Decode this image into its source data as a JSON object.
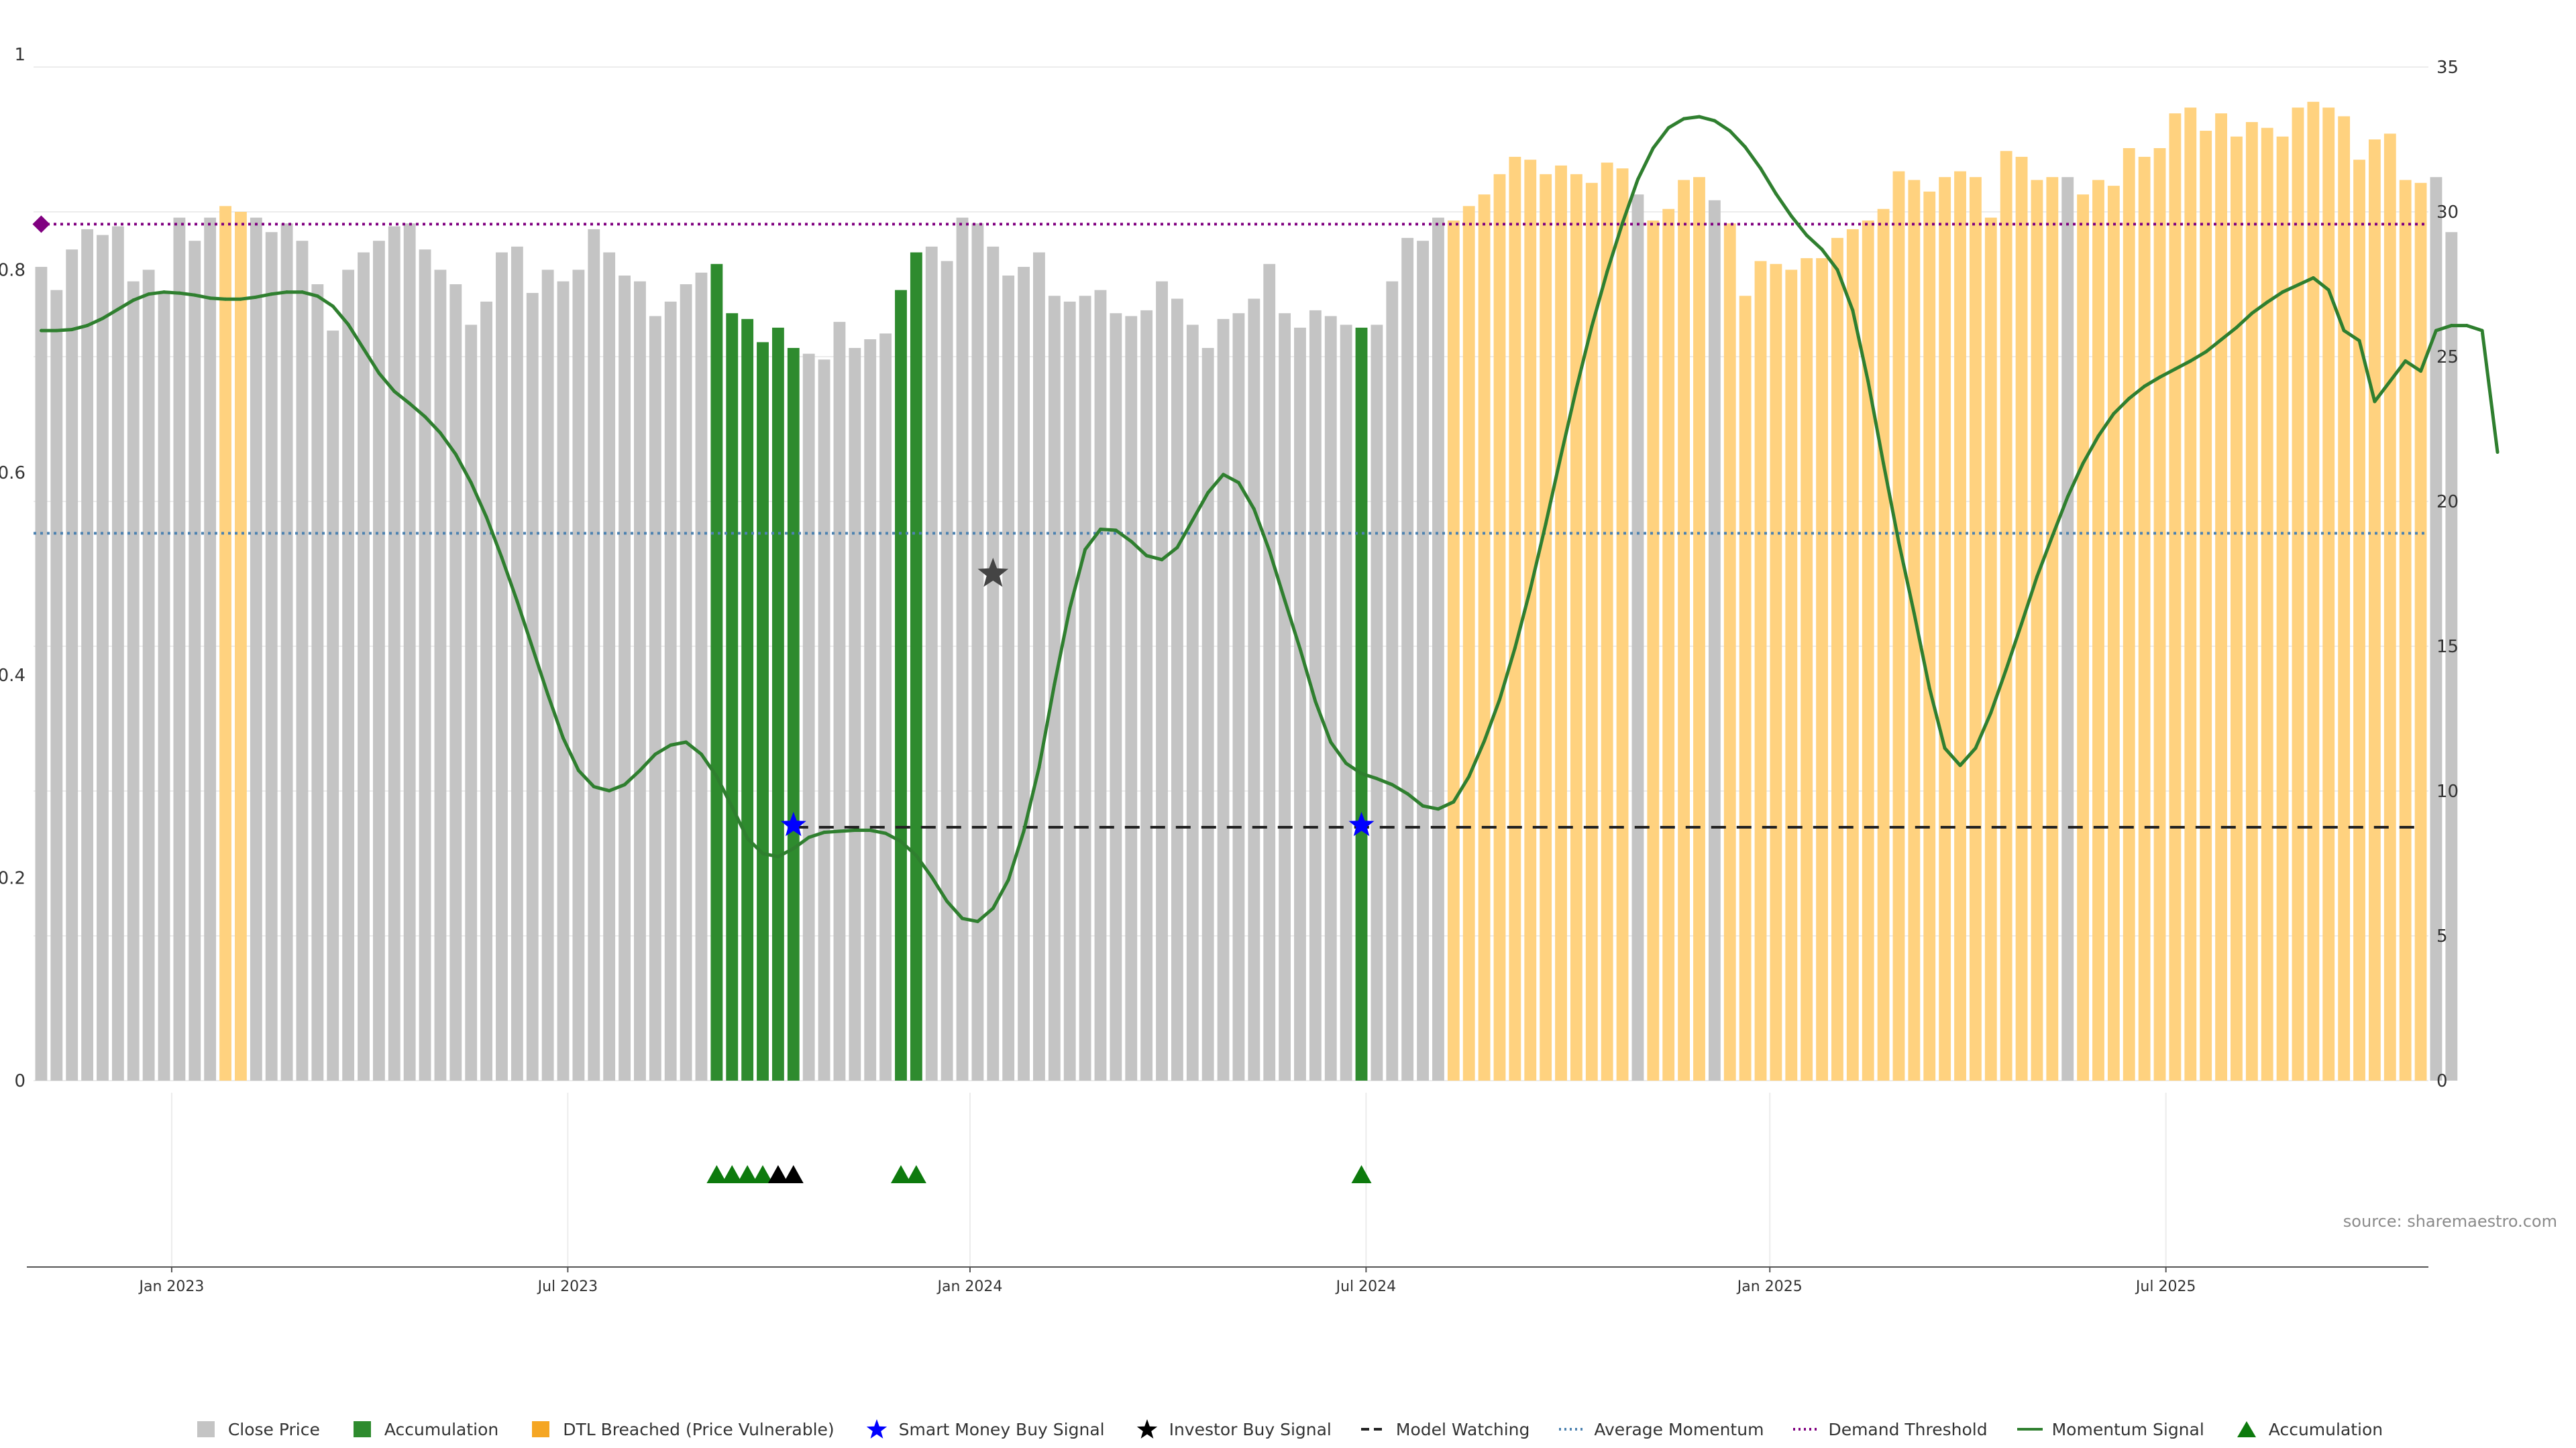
{
  "source_note": "source: sharemaestro.com",
  "colors": {
    "close_price": "#c4c4c4",
    "accumulation": "#2e8b2e",
    "dtl_breached": "#ffd27f",
    "smart_money": "#0000ff",
    "investor": "#000000",
    "model_watching": "#222222",
    "avg_momentum": "#4d82b0",
    "demand_threshold": "#800080",
    "momentum_signal": "#2f7f2f",
    "acc_marker": "#0d7a0d"
  },
  "legend": [
    {
      "label": "Close Price",
      "symbol": "square",
      "color": "#c4c4c4"
    },
    {
      "label": "Accumulation",
      "symbol": "square",
      "color": "#2e8b2e"
    },
    {
      "label": "DTL Breached (Price Vulnerable)",
      "symbol": "square",
      "color": "#f5a623"
    },
    {
      "label": "Smart Money Buy Signal",
      "symbol": "star",
      "color": "#0000ff"
    },
    {
      "label": "Investor Buy Signal",
      "symbol": "star",
      "color": "#000000"
    },
    {
      "label": "Model Watching",
      "symbol": "dash",
      "color": "#222222"
    },
    {
      "label": "Average Momentum",
      "symbol": "dot",
      "color": "#4d82b0"
    },
    {
      "label": "Demand Threshold",
      "symbol": "dot",
      "color": "#800080"
    },
    {
      "label": "Momentum Signal",
      "symbol": "line",
      "color": "#2f7f2f"
    },
    {
      "label": "Accumulation",
      "symbol": "triangle",
      "color": "#0d7a0d"
    }
  ],
  "chart_data": {
    "type": "bar",
    "n_bars": 156,
    "left_axis": {
      "ticks": [
        0,
        0.2,
        0.4,
        0.6,
        0.8
      ],
      "tick_labels": [
        "0",
        "0.2",
        "0.4",
        "0.6",
        "0.8"
      ],
      "top_label": "1",
      "range": [
        0,
        1
      ]
    },
    "right_axis": {
      "ticks": [
        0,
        5,
        10,
        15,
        20,
        25,
        30,
        35
      ],
      "tick_labels": [
        "0",
        "5",
        "10",
        "15",
        "20",
        "25",
        "30",
        "35"
      ],
      "range": [
        0,
        35
      ]
    },
    "x_axis": {
      "tick_labels": [
        "Jan 2023",
        "Jul 2023",
        "Jan 2024",
        "Jul 2024",
        "Jan 2025",
        "Jul 2025"
      ],
      "tick_bar_index": [
        8.5,
        34.3,
        60.5,
        86.3,
        112.6,
        138.4
      ]
    },
    "close_price": [
      28.1,
      27.3,
      28.7,
      29.4,
      29.2,
      29.5,
      27.6,
      28.0,
      27.2,
      29.8,
      29.0,
      29.8,
      30.2,
      30.0,
      29.8,
      29.3,
      29.6,
      29.0,
      27.5,
      25.9,
      28.0,
      28.6,
      29.0,
      29.5,
      29.6,
      28.7,
      28.0,
      27.5,
      26.1,
      26.9,
      28.6,
      28.8,
      27.2,
      28.0,
      27.6,
      28.0,
      29.4,
      28.6,
      27.8,
      27.6,
      26.4,
      26.9,
      27.5,
      27.9,
      28.2,
      26.9,
      26.5,
      25.9,
      25.1,
      25.9,
      25.1,
      24.9,
      26.2,
      25.3,
      25.6,
      25.8,
      26.8,
      27.3,
      28.8,
      28.3,
      29.8,
      29.6,
      28.8,
      27.8,
      28.1,
      28.6,
      27.1,
      26.9,
      27.1,
      27.3,
      26.5,
      26.4,
      26.6,
      27.6,
      27.0,
      26.1,
      25.3,
      26.3,
      26.5,
      27.0,
      28.2,
      26.5,
      26.0,
      26.6,
      26.4,
      26.1,
      26.8,
      26.1,
      27.6,
      29.1,
      29.0,
      29.8,
      29.7,
      30.2,
      30.6,
      31.3,
      31.9,
      31.8,
      31.3,
      31.6,
      31.3,
      31.0,
      31.7,
      31.5,
      30.6,
      29.7,
      30.1,
      31.1,
      31.2,
      30.4,
      29.6,
      27.1,
      28.3,
      28.2,
      28.0,
      28.4,
      28.4,
      29.1,
      29.4,
      29.7,
      30.1,
      31.4,
      31.1,
      30.7,
      31.2,
      31.4,
      31.2,
      29.8,
      32.1,
      31.9,
      31.1,
      31.2,
      31.2,
      30.6,
      31.1,
      30.9,
      32.2,
      31.9,
      32.2,
      33.4,
      33.6,
      32.8,
      33.4,
      32.6,
      33.1,
      32.9,
      32.6,
      33.6,
      33.8,
      33.6,
      33.3,
      31.8,
      32.5,
      32.7,
      31.1,
      31.0,
      31.2,
      29.3
    ],
    "dtl_breached_bars": [
      12,
      13,
      92,
      93,
      94,
      95,
      96,
      97,
      98,
      99,
      100,
      101,
      102,
      103,
      104,
      105,
      106,
      107,
      108,
      109,
      110,
      111,
      112,
      113,
      114,
      115,
      116,
      117,
      118,
      119,
      120,
      121,
      122,
      123,
      124,
      125,
      126,
      127,
      128,
      129,
      130,
      131,
      132,
      133,
      134,
      135,
      136,
      137,
      138,
      139,
      140,
      141,
      142,
      143,
      144,
      145,
      146,
      147,
      148,
      149,
      150,
      151,
      152,
      153,
      154,
      155
    ],
    "dtl_breached_exclude": [
      104,
      109,
      125,
      126,
      127,
      128,
      129,
      130,
      131,
      132,
      133,
      134,
      135,
      136,
      137,
      138,
      139,
      140,
      141,
      142,
      143,
      144,
      145,
      146,
      147,
      148,
      149,
      150,
      151,
      152,
      153,
      154,
      155
    ],
    "dtl_breached_extra": [
      125,
      126,
      127,
      128,
      129,
      130,
      131,
      133,
      134,
      135,
      136,
      137,
      138,
      139,
      140,
      141,
      142,
      143,
      144,
      145,
      146,
      147,
      148,
      149,
      150,
      151,
      152,
      153,
      154,
      155
    ],
    "accumulation_bars": [
      44,
      45,
      46,
      47,
      48,
      49,
      56,
      57,
      86
    ],
    "accumulation_values": [
      28.2,
      26.5,
      26.3,
      25.5,
      26.0,
      25.3,
      27.3,
      28.6,
      26.0
    ],
    "momentum_signal": [
      0.74,
      0.74,
      0.741,
      0.745,
      0.752,
      0.761,
      0.77,
      0.776,
      0.778,
      0.777,
      0.775,
      0.772,
      0.771,
      0.771,
      0.773,
      0.776,
      0.778,
      0.778,
      0.774,
      0.764,
      0.746,
      0.722,
      0.698,
      0.68,
      0.668,
      0.655,
      0.639,
      0.618,
      0.59,
      0.556,
      0.516,
      0.473,
      0.427,
      0.381,
      0.338,
      0.306,
      0.29,
      0.286,
      0.292,
      0.306,
      0.322,
      0.331,
      0.334,
      0.322,
      0.3,
      0.27,
      0.239,
      0.224,
      0.221,
      0.229,
      0.24,
      0.245,
      0.246,
      0.247,
      0.247,
      0.244,
      0.236,
      0.222,
      0.201,
      0.177,
      0.16,
      0.157,
      0.17,
      0.198,
      0.246,
      0.309,
      0.391,
      0.466,
      0.524,
      0.544,
      0.543,
      0.532,
      0.518,
      0.514,
      0.526,
      0.553,
      0.58,
      0.598,
      0.59,
      0.564,
      0.523,
      0.474,
      0.426,
      0.374,
      0.334,
      0.313,
      0.303,
      0.298,
      0.292,
      0.283,
      0.271,
      0.268,
      0.275,
      0.3,
      0.335,
      0.376,
      0.427,
      0.485,
      0.549,
      0.617,
      0.683,
      0.744,
      0.798,
      0.846,
      0.889,
      0.92,
      0.94,
      0.949,
      0.951,
      0.947,
      0.937,
      0.921,
      0.9,
      0.875,
      0.853,
      0.834,
      0.82,
      0.8,
      0.76,
      0.69,
      0.609,
      0.531,
      0.461,
      0.387,
      0.328,
      0.311,
      0.328,
      0.363,
      0.406,
      0.451,
      0.497,
      0.537,
      0.576,
      0.609,
      0.636,
      0.658,
      0.673,
      0.685,
      0.694,
      0.702,
      0.71,
      0.719,
      0.731,
      0.743,
      0.757,
      0.768,
      0.778,
      0.785,
      0.792,
      0.78,
      0.74,
      0.73,
      0.67,
      0.69,
      0.71,
      0.7,
      0.74,
      0.745,
      0.745,
      0.74,
      0.62
    ],
    "demand_threshold": 0.845,
    "average_momentum": 0.54,
    "model_watching": {
      "value": 0.25,
      "from_bar": 49,
      "to_bar": 155
    },
    "smart_money_signals": [
      {
        "bar": 49,
        "value": 0.252
      },
      {
        "bar": 86,
        "value": 0.252
      }
    ],
    "investor_signals": [
      {
        "bar": 62,
        "value": 0.5
      }
    ],
    "accumulation_markers": {
      "green_bars": [
        44,
        45,
        46,
        47,
        56,
        57,
        86
      ],
      "black_bars": [
        48,
        49
      ]
    },
    "demand_threshold_marker_bar": 0
  }
}
